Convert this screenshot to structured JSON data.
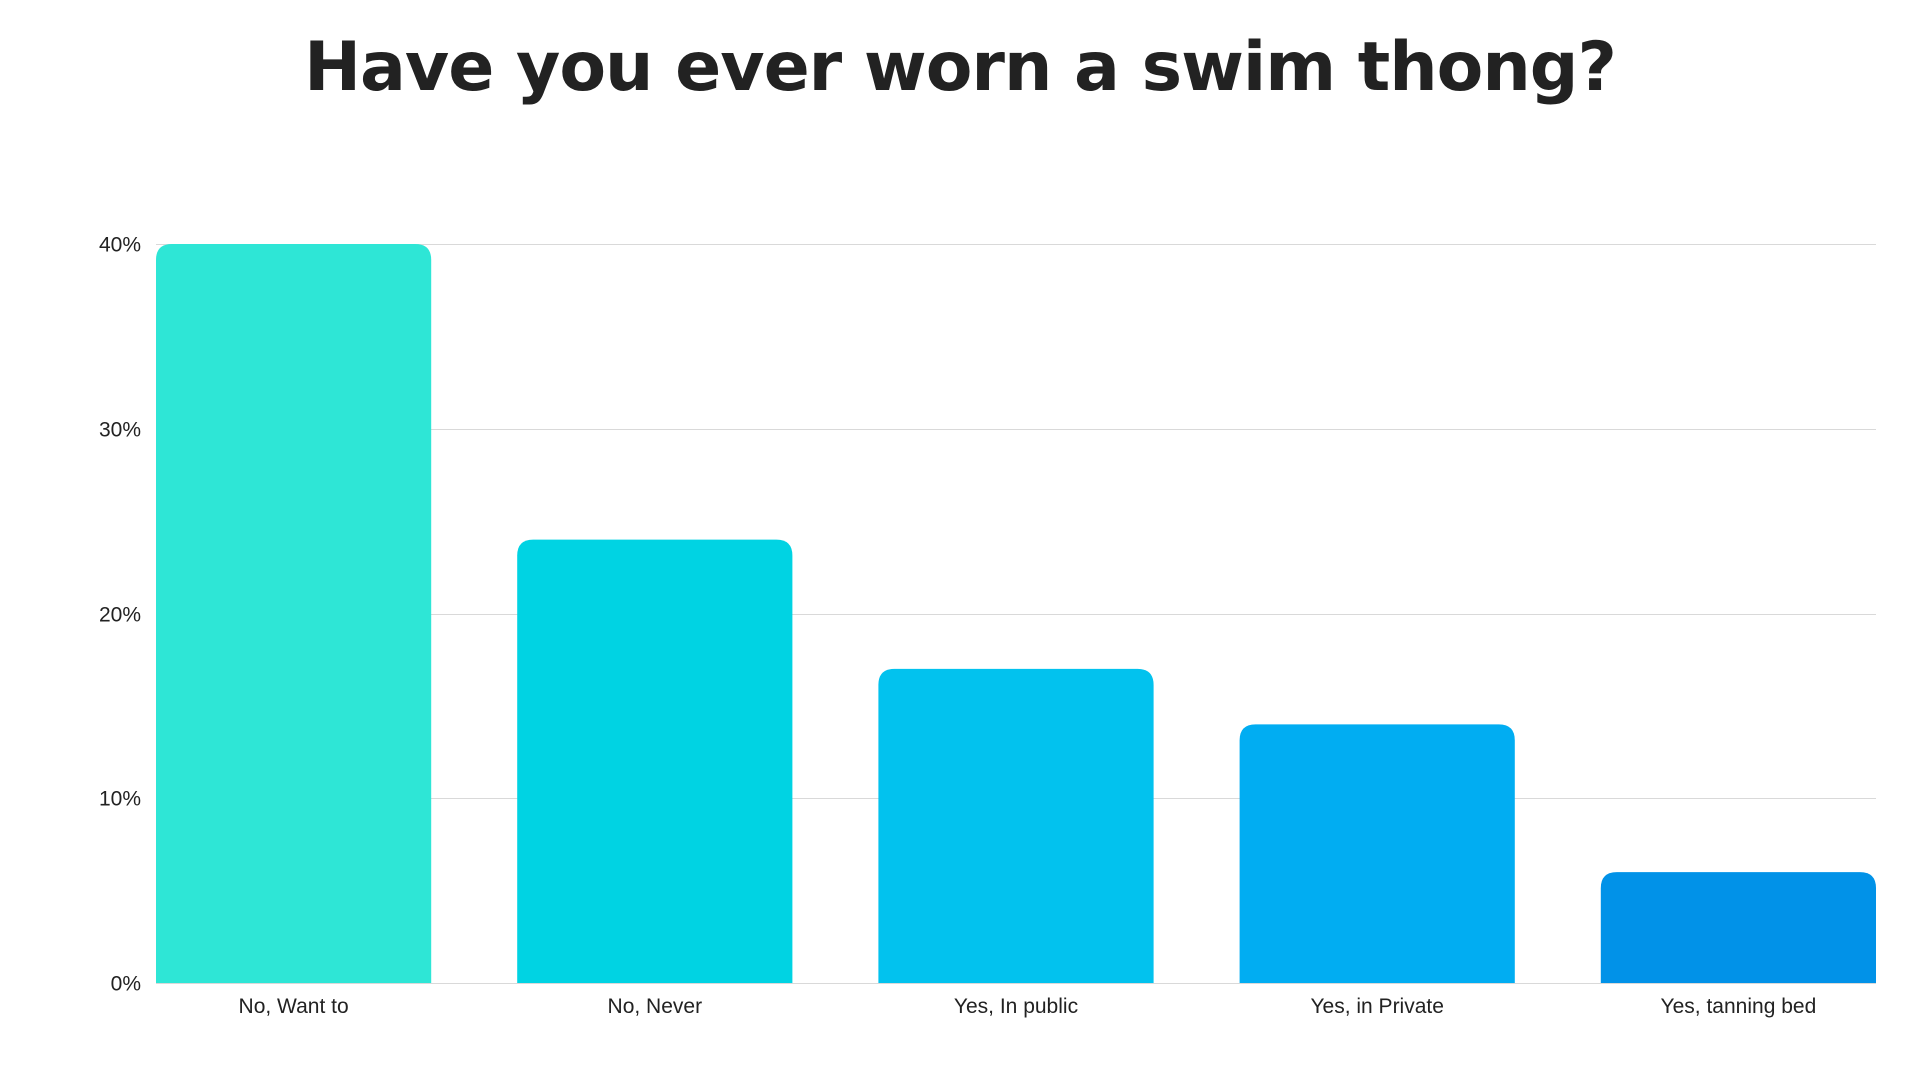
{
  "chart_data": {
    "type": "bar",
    "title": "Have you ever worn a swim thong?",
    "xlabel": "",
    "ylabel": "",
    "categories": [
      "No, Want to",
      "No, Never",
      "Yes, In public",
      "Yes, in Private",
      "Yes, tanning bed"
    ],
    "values": [
      40,
      24,
      17,
      14,
      6
    ],
    "ylim": [
      0,
      40
    ],
    "yticks": [
      0,
      10,
      20,
      30,
      40
    ],
    "ytick_labels": [
      "0%",
      "10%",
      "20%",
      "30%",
      "40%"
    ],
    "grid": true,
    "legend": "none",
    "bar_colors": [
      "#2ee6d6",
      "#00d3e3",
      "#02c2ee",
      "#01adf2",
      "#0192e8"
    ],
    "gridline_color": "#d9d9d9",
    "text_color": "#222222"
  }
}
